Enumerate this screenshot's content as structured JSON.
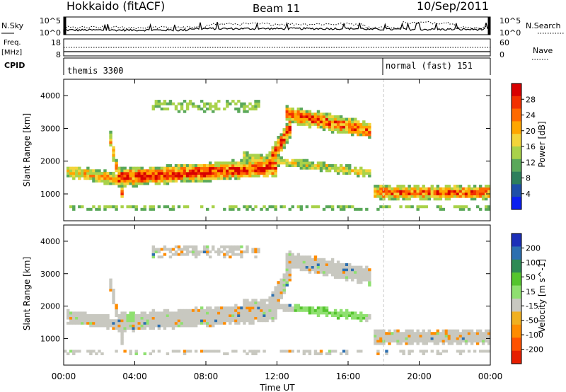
{
  "header": {
    "station": "Hokkaido (fitACF)",
    "beam": "Beam 11",
    "date": "10/Sep/2011"
  },
  "strip_nsky": {
    "left_label": "N.Sky",
    "right_label": "N.Search",
    "ticks_left": [
      "10^5",
      "10^0"
    ],
    "ticks_right": [
      "10^5",
      "10^0"
    ]
  },
  "strip_freq": {
    "left_label_1": "Freq.",
    "left_label_2": "[MHz]",
    "ticks_left": [
      "18",
      "8"
    ],
    "right_label": "Nave",
    "ticks_right": [
      "60",
      "0"
    ]
  },
  "strip_cpid": {
    "left_label": "CPID",
    "modes": [
      {
        "label": "themis 3300",
        "start_hour": 0
      },
      {
        "label": "normal (fast) 151",
        "start_hour": 18
      }
    ]
  },
  "chart_data": [
    {
      "type": "heatmap",
      "name": "power",
      "ylabel": "Slant Range [km]",
      "ylim": [
        180,
        4500
      ],
      "yticks": [
        1000,
        2000,
        3000,
        4000
      ],
      "xlim": [
        0,
        24
      ],
      "colorbar": {
        "label": "Power [dB]",
        "ticks": [
          "28",
          "24",
          "20",
          "16",
          "12",
          "8",
          "4"
        ],
        "colors": [
          "#d80000",
          "#f23000",
          "#ff6a00",
          "#ffa600",
          "#f3d43a",
          "#a9d24a",
          "#5aa85a",
          "#2d7f5c",
          "#1e4fa8",
          "#0b1ff0"
        ]
      }
    },
    {
      "type": "heatmap",
      "name": "velocity",
      "ylabel": "Slant Range [km]",
      "ylim": [
        180,
        4500
      ],
      "yticks": [
        1000,
        2000,
        3000,
        4000
      ],
      "xlim": [
        0,
        24
      ],
      "colorbar": {
        "label": "Velocity [m s^-1]",
        "ticks": [
          "200",
          "100",
          "50",
          "15",
          "-15",
          "-50",
          "-100",
          "-200"
        ],
        "colors": [
          "#1c2fb8",
          "#2c6fb0",
          "#2e8a55",
          "#55c52e",
          "#8fe070",
          "#c8c8c0",
          "#f0b020",
          "#ff8c00",
          "#ff5200",
          "#e61e00"
        ]
      }
    }
  ],
  "x_axis": {
    "ticks": [
      "00:00",
      "04:00",
      "08:00",
      "12:00",
      "16:00",
      "20:00",
      "00:00"
    ],
    "label": "Time UT"
  }
}
